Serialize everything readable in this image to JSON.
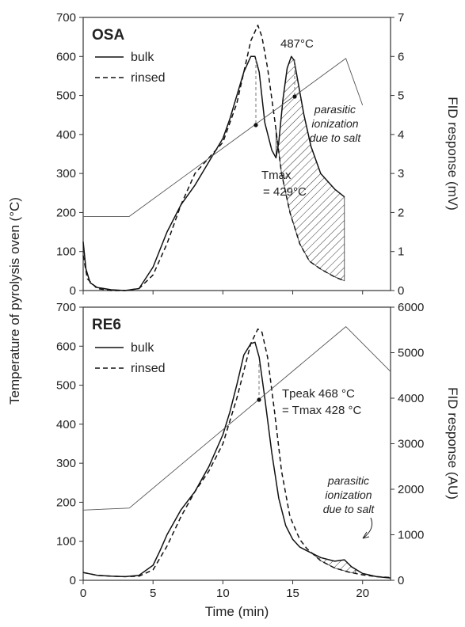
{
  "shared": {
    "xlabel": "Time (min)",
    "ylabel_left": "Temperature of pyrolysis oven (°C)",
    "x_range": [
      0,
      22
    ],
    "x_ticks": [
      0,
      5,
      10,
      15,
      20
    ]
  },
  "chart_data": [
    {
      "type": "line",
      "title": "OSA",
      "y_left_range": [
        0,
        700
      ],
      "y_left_ticks": [
        0,
        100,
        200,
        300,
        400,
        500,
        600,
        700
      ],
      "y_right_range": [
        0,
        7
      ],
      "y_right_ticks": [
        0,
        1,
        2,
        3,
        4,
        5,
        6,
        7
      ],
      "ylabel_right": "FID response (mV)",
      "legend": {
        "placement": "top-left",
        "entries": [
          "bulk",
          "rinsed"
        ]
      },
      "series": [
        {
          "name": "bulk",
          "style": "solid",
          "axis": "right",
          "x": [
            0,
            0.2,
            0.5,
            1,
            2,
            3,
            4,
            5,
            6,
            7,
            8,
            9,
            10,
            10.5,
            11,
            11.5,
            12,
            12.3,
            12.6,
            13,
            13.5,
            13.8,
            14,
            14.3,
            14.6,
            14.9,
            15.1,
            15.4,
            15.8,
            16.3,
            17,
            18,
            18.7
          ],
          "y": [
            1.25,
            0.55,
            0.2,
            0.08,
            0.02,
            0,
            0.05,
            0.6,
            1.5,
            2.2,
            2.7,
            3.3,
            3.9,
            4.4,
            5.0,
            5.6,
            6.0,
            6.0,
            5.6,
            4.3,
            3.6,
            3.4,
            3.8,
            4.9,
            5.7,
            6.0,
            5.9,
            5.3,
            4.5,
            3.7,
            3.0,
            2.6,
            2.4
          ]
        },
        {
          "name": "rinsed",
          "style": "dashed",
          "axis": "right",
          "x": [
            0,
            0.3,
            1,
            2,
            3,
            4,
            5,
            6,
            7,
            8,
            9,
            10,
            11,
            11.5,
            12,
            12.5,
            12.8,
            13.2,
            13.7,
            14.2,
            14.8,
            15.5,
            16.2,
            17,
            18,
            18.7
          ],
          "y": [
            0.9,
            0.3,
            0.05,
            0,
            0,
            0.05,
            0.4,
            1.2,
            2.2,
            3.0,
            3.4,
            3.8,
            4.8,
            5.6,
            6.4,
            6.8,
            6.5,
            5.7,
            4.4,
            3.0,
            2.0,
            1.2,
            0.75,
            0.55,
            0.35,
            0.25
          ]
        },
        {
          "name": "",
          "style": "thin",
          "axis": "left",
          "x": [
            0,
            3.3,
            18.8,
            20
          ],
          "y": [
            190,
            190,
            595,
            475
          ]
        }
      ],
      "annotations": [
        {
          "text": "487°C",
          "x": 14.9,
          "y_right": 6.3
        },
        {
          "text_lines": [
            "Tmax",
            "= 429°C"
          ],
          "x": 12.2,
          "y_right": 4.2
        },
        {
          "text_lines": [
            "parasitic",
            "ionization",
            "due to salt"
          ],
          "italic": true,
          "x": 16.5,
          "y_right": 4.5
        }
      ],
      "hatched_region": {
        "label": "parasitic ionization due to salt",
        "x_range": [
          13.8,
          18.7
        ]
      }
    },
    {
      "type": "line",
      "title": "RE6",
      "y_left_range": [
        0,
        700
      ],
      "y_left_ticks": [
        0,
        100,
        200,
        300,
        400,
        500,
        600,
        700
      ],
      "y_right_range": [
        0,
        6000
      ],
      "y_right_ticks": [
        0,
        1000,
        2000,
        3000,
        4000,
        5000,
        6000
      ],
      "ylabel_right": "FID response (AU)",
      "legend": {
        "placement": "top-left",
        "entries": [
          "bulk",
          "rinsed"
        ]
      },
      "series": [
        {
          "name": "bulk",
          "style": "solid",
          "axis": "right",
          "x": [
            0,
            1,
            2,
            3,
            4,
            5,
            5.5,
            6,
            7,
            8,
            9,
            10,
            10.5,
            11,
            11.5,
            12,
            12.3,
            12.6,
            13,
            13.5,
            14,
            14.5,
            15,
            15.5,
            16,
            17,
            18,
            18.7,
            19.2,
            20,
            21,
            22
          ],
          "y": [
            170,
            110,
            90,
            80,
            110,
            330,
            650,
            1000,
            1550,
            1950,
            2500,
            3200,
            3700,
            4300,
            4950,
            5200,
            5230,
            4900,
            4000,
            2800,
            1800,
            1200,
            900,
            730,
            650,
            500,
            420,
            450,
            300,
            150,
            80,
            50
          ]
        },
        {
          "name": "rinsed",
          "style": "dashed",
          "axis": "right",
          "x": [
            0,
            1,
            2,
            3,
            4,
            5,
            6,
            7,
            8,
            9,
            10,
            11,
            11.5,
            12,
            12.5,
            12.8,
            13.2,
            13.7,
            14.2,
            14.8,
            15.5,
            16,
            17,
            18,
            19,
            20,
            21,
            22
          ],
          "y": [
            170,
            110,
            90,
            80,
            90,
            230,
            750,
            1400,
            1950,
            2400,
            3000,
            4000,
            4600,
            5200,
            5520,
            5450,
            4900,
            3700,
            2400,
            1400,
            900,
            700,
            430,
            270,
            180,
            120,
            80,
            60
          ]
        },
        {
          "name": "",
          "style": "thin",
          "axis": "left",
          "x": [
            0,
            3.3,
            18.8,
            22
          ],
          "y": [
            180,
            185,
            650,
            535
          ]
        }
      ],
      "annotations": [
        {
          "text_lines": [
            "Tpeak 468 °C",
            "=  Tmax 428 °C"
          ],
          "x": 12.3,
          "y_right": 3950
        },
        {
          "text_lines": [
            "parasitic",
            "ionization",
            "due to salt"
          ],
          "italic": true,
          "x": 20,
          "y_right": 800
        }
      ],
      "hatched_region": {
        "label": "parasitic ionization due to salt",
        "x_range": [
          16.5,
          19.5
        ]
      }
    }
  ]
}
